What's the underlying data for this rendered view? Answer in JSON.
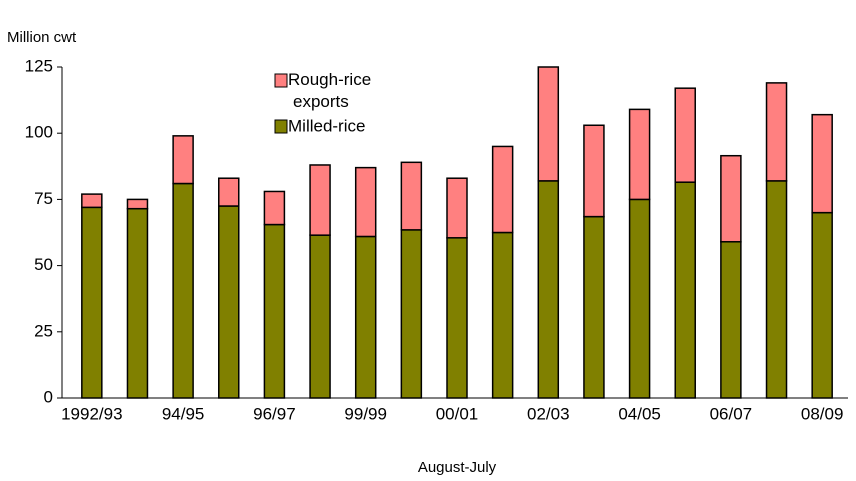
{
  "chart_data": {
    "type": "stacked-bar",
    "y_axis_label": "Million cwt",
    "x_axis_label": "August-July",
    "categories": [
      "1992/93",
      null,
      "94/95",
      null,
      "96/97",
      null,
      "99/99",
      null,
      "00/01",
      null,
      "02/03",
      null,
      "04/05",
      null,
      "06/07",
      null,
      "08/09"
    ],
    "series": [
      {
        "name": "Milled-rice",
        "color": "#808000",
        "values": [
          72,
          71.5,
          81,
          72.5,
          65.5,
          61.5,
          61,
          63.5,
          60.5,
          62.5,
          82,
          68.5,
          75,
          81.5,
          59,
          82,
          70
        ]
      },
      {
        "name": "Rough-rice exports",
        "color": "#ff8080",
        "values": [
          5,
          3.5,
          18,
          10.5,
          12.5,
          26.5,
          26,
          25.5,
          22.5,
          32.5,
          43,
          34.5,
          34,
          35.5,
          32.5,
          37,
          37
        ]
      }
    ],
    "ylim": [
      0,
      125
    ],
    "yticks": [
      0,
      25,
      50,
      75,
      100,
      125
    ]
  }
}
